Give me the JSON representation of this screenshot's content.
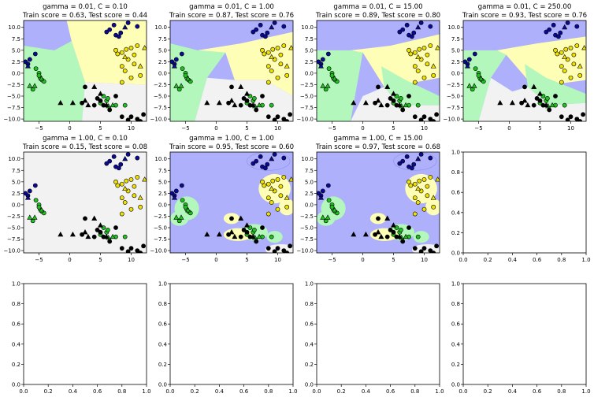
{
  "chart_data": [
    {
      "type": "scatter",
      "title": "gamma = 0.01, C = 0.10",
      "subtitle": "Train score = 0.63, Test score = 0.44",
      "xticks": [
        "−5",
        "0",
        "5",
        "10"
      ],
      "yticks": [
        "10.0",
        "7.5",
        "5.0",
        "2.5",
        "0.0",
        "−2.5",
        "−5.0",
        "−7.5",
        "−10.0"
      ],
      "xlim": [
        -7.5,
        12.5
      ],
      "ylim": [
        -10.5,
        11.5
      ],
      "regions": "decision-surface",
      "series": [
        {
          "class": "blue",
          "marker": "circle/triangle"
        },
        {
          "class": "green",
          "marker": "circle/triangle"
        },
        {
          "class": "yellow",
          "marker": "circle/triangle"
        },
        {
          "class": "black",
          "marker": "circle/triangle"
        }
      ]
    },
    {
      "type": "scatter",
      "title": "gamma = 0.01, C = 1.00",
      "subtitle": "Train score = 0.87, Test score = 0.76",
      "xticks": [
        "−5",
        "0",
        "5",
        "10"
      ],
      "yticks": [
        "10.0",
        "7.5",
        "5.0",
        "2.5",
        "0.0",
        "−2.5",
        "−5.0",
        "−7.5",
        "−10.0"
      ],
      "xlim": [
        -7.5,
        12.5
      ],
      "ylim": [
        -10.5,
        11.5
      ]
    },
    {
      "type": "scatter",
      "title": "gamma = 0.01, C = 15.00",
      "subtitle": "Train score = 0.89, Test score = 0.80",
      "xticks": [
        "−5",
        "0",
        "5",
        "10"
      ],
      "yticks": [
        "10.0",
        "7.5",
        "5.0",
        "2.5",
        "0.0",
        "−2.5",
        "−5.0",
        "−7.5",
        "−10.0"
      ],
      "xlim": [
        -7.5,
        12.5
      ],
      "ylim": [
        -10.5,
        11.5
      ]
    },
    {
      "type": "scatter",
      "title": "gamma = 0.01, C = 250.00",
      "subtitle": "Train score = 0.93, Test score = 0.76",
      "xticks": [
        "−5",
        "0",
        "5",
        "10"
      ],
      "yticks": [
        "10.0",
        "7.5",
        "5.0",
        "2.5",
        "0.0",
        "−2.5",
        "−5.0",
        "−7.5",
        "−10.0"
      ],
      "xlim": [
        -7.5,
        12.5
      ],
      "ylim": [
        -10.5,
        11.5
      ]
    },
    {
      "type": "scatter",
      "title": "gamma = 1.00, C = 0.10",
      "subtitle": "Train score = 0.15, Test score = 0.08",
      "xticks": [
        "−5",
        "0",
        "5",
        "10"
      ],
      "yticks": [
        "10.0",
        "7.5",
        "5.0",
        "2.5",
        "0.0",
        "−2.5",
        "−5.0",
        "−7.5",
        "−10.0"
      ],
      "xlim": [
        -7.5,
        12.5
      ],
      "ylim": [
        -10.5,
        11.5
      ]
    },
    {
      "type": "scatter",
      "title": "gamma = 1.00, C = 1.00",
      "subtitle": "Train score = 0.95, Test score = 0.60",
      "xticks": [
        "−5",
        "0",
        "5",
        "10"
      ],
      "yticks": [
        "10.0",
        "7.5",
        "5.0",
        "2.5",
        "0.0",
        "−2.5",
        "−5.0",
        "−7.5",
        "−10.0"
      ],
      "xlim": [
        -7.5,
        12.5
      ],
      "ylim": [
        -10.5,
        11.5
      ]
    },
    {
      "type": "scatter",
      "title": "gamma = 1.00, C = 15.00",
      "subtitle": "Train score = 0.97, Test score = 0.68",
      "xticks": [
        "−5",
        "0",
        "5",
        "10"
      ],
      "yticks": [
        "10.0",
        "7.5",
        "5.0",
        "2.5",
        "0.0",
        "−2.5",
        "−5.0",
        "−7.5",
        "−10.0"
      ],
      "xlim": [
        -7.5,
        12.5
      ],
      "ylim": [
        -10.5,
        11.5
      ]
    },
    {
      "type": "scatter",
      "title": "",
      "subtitle": "",
      "xticks": [
        "0.0",
        "0.2",
        "0.4",
        "0.6",
        "0.8",
        "1.0"
      ],
      "yticks": [
        "1.0",
        "0.8",
        "0.6",
        "0.4",
        "0.2",
        "0.0"
      ],
      "xlim": [
        0,
        1
      ],
      "ylim": [
        0,
        1
      ],
      "empty": true
    },
    {
      "type": "scatter",
      "title": "",
      "subtitle": "",
      "xticks": [
        "0.0",
        "0.2",
        "0.4",
        "0.6",
        "0.8",
        "1.0"
      ],
      "yticks": [
        "1.0",
        "0.8",
        "0.6",
        "0.4",
        "0.2",
        "0.0"
      ],
      "xlim": [
        0,
        1
      ],
      "ylim": [
        0,
        1
      ],
      "empty": true
    },
    {
      "type": "scatter",
      "title": "",
      "subtitle": "",
      "xticks": [
        "0.0",
        "0.2",
        "0.4",
        "0.6",
        "0.8",
        "1.0"
      ],
      "yticks": [
        "1.0",
        "0.8",
        "0.6",
        "0.4",
        "0.2",
        "0.0"
      ],
      "xlim": [
        0,
        1
      ],
      "ylim": [
        0,
        1
      ],
      "empty": true
    },
    {
      "type": "scatter",
      "title": "",
      "subtitle": "",
      "xticks": [
        "0.0",
        "0.2",
        "0.4",
        "0.6",
        "0.8",
        "1.0"
      ],
      "yticks": [
        "1.0",
        "0.8",
        "0.6",
        "0.4",
        "0.2",
        "0.0"
      ],
      "xlim": [
        0,
        1
      ],
      "ylim": [
        0,
        1
      ],
      "empty": true
    },
    {
      "type": "scatter",
      "title": "",
      "subtitle": "",
      "xticks": [
        "0.0",
        "0.2",
        "0.4",
        "0.6",
        "0.8",
        "1.0"
      ],
      "yticks": [
        "1.0",
        "0.8",
        "0.6",
        "0.4",
        "0.2",
        "0.0"
      ],
      "xlim": [
        0,
        1
      ],
      "ylim": [
        0,
        1
      ],
      "empty": true
    }
  ],
  "points": {
    "blue": [
      [
        -7.2,
        2.5
      ],
      [
        -6.5,
        3.0
      ],
      [
        -6.8,
        2.0
      ],
      [
        -5.6,
        4.2
      ],
      [
        7.5,
        8.3
      ],
      [
        8.0,
        8.0
      ],
      [
        6.5,
        9.5
      ],
      [
        7.2,
        10.5
      ],
      [
        9.5,
        11.0
      ],
      [
        11.0,
        10.2
      ],
      [
        6.0,
        9.0
      ],
      [
        8.3,
        8.8
      ]
    ],
    "blue_tri": [
      [
        -6.8,
        1.5
      ],
      [
        9.0,
        10.0
      ]
    ],
    "green": [
      [
        -5.5,
        1.0
      ],
      [
        -5.0,
        0.0
      ],
      [
        -4.5,
        -1.5
      ],
      [
        -4.8,
        -1.0
      ],
      [
        -4.2,
        -1.8
      ],
      [
        -5.0,
        -0.5
      ],
      [
        -6.0,
        -3.5
      ],
      [
        5.5,
        -5.0
      ],
      [
        6.0,
        -6.0
      ],
      [
        7.5,
        -7.0
      ],
      [
        5.0,
        -6.5
      ],
      [
        9.0,
        -7.0
      ],
      [
        6.2,
        -5.5
      ]
    ],
    "green_tri": [
      [
        -6.5,
        -2.8
      ],
      [
        -5.7,
        -2.8
      ],
      [
        -4.6,
        -1.2
      ],
      [
        7.0,
        -7.0
      ],
      [
        6.3,
        -7.2
      ]
    ],
    "yellow": [
      [
        7.5,
        5.0
      ],
      [
        8.5,
        4.5
      ],
      [
        10.0,
        5.5
      ],
      [
        9.5,
        3.0
      ],
      [
        10.5,
        2.0
      ],
      [
        8.5,
        1.5
      ],
      [
        9.0,
        0.5
      ],
      [
        10.0,
        -1.0
      ],
      [
        11.5,
        -0.5
      ],
      [
        8.5,
        -2.0
      ],
      [
        10.5,
        4.0
      ],
      [
        7.8,
        4.2
      ],
      [
        9.2,
        5.2
      ],
      [
        11.0,
        6.0
      ]
    ],
    "yellow_tri": [
      [
        9.0,
        3.5
      ],
      [
        12.2,
        5.5
      ],
      [
        11.5,
        1.5
      ]
    ],
    "black": [
      [
        2.5,
        -3.0
      ],
      [
        5.0,
        -6.0
      ],
      [
        5.5,
        -7.0
      ],
      [
        4.5,
        -5.5
      ],
      [
        6.5,
        -8.0
      ],
      [
        2.0,
        -6.5
      ],
      [
        4.0,
        -7.0
      ],
      [
        8.5,
        -9.5
      ],
      [
        10.0,
        -9.5
      ],
      [
        11.0,
        -10.0
      ],
      [
        12.0,
        -9.0
      ],
      [
        9.5,
        -10.2
      ],
      [
        11.5,
        -10.5
      ],
      [
        7.5,
        -5.0
      ]
    ],
    "black_tri": [
      [
        -1.5,
        -6.5
      ],
      [
        4.0,
        -3.0
      ],
      [
        5.0,
        -4.5
      ],
      [
        3.0,
        -7.0
      ],
      [
        0.5,
        -6.5
      ],
      [
        2.5,
        -6.0
      ],
      [
        6.0,
        -7.0
      ]
    ]
  }
}
